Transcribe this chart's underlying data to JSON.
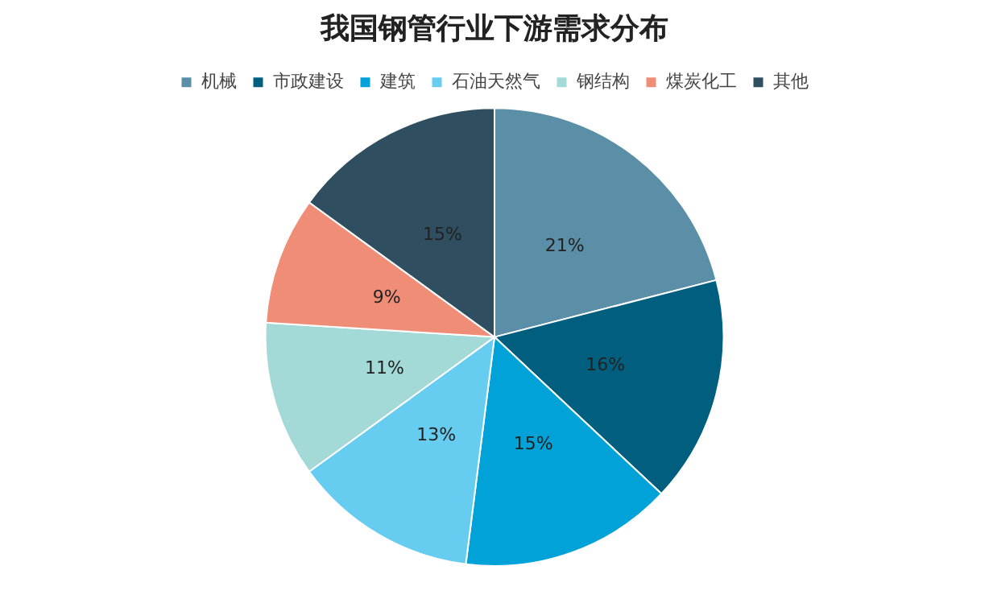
{
  "chart_data": {
    "type": "pie",
    "title": "我国钢管行业下游需求分布",
    "categories": [
      "机械",
      "市政建设",
      "建筑",
      "石油天然气",
      "钢结构",
      "煤炭化工",
      "其他"
    ],
    "values": [
      21,
      16,
      15,
      13,
      11,
      9,
      15
    ],
    "value_labels": [
      "21%",
      "16%",
      "15%",
      "13%",
      "11%",
      "9%",
      "15%"
    ],
    "colors": [
      "#5b8fa8",
      "#005f7f",
      "#00a2d8",
      "#66ccf0",
      "#a3d9d6",
      "#ef8d76",
      "#2f4f60"
    ],
    "legend": "top"
  }
}
